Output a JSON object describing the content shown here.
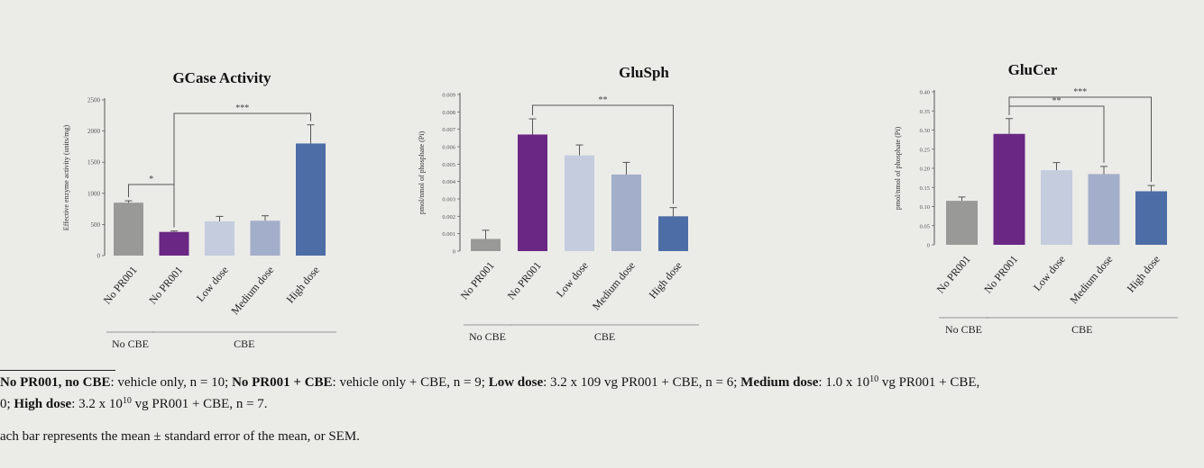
{
  "chart_data": [
    {
      "type": "bar",
      "title": "GCase Activity",
      "ylabel": "Effective enzyme activity (units/mg)",
      "ylim": [
        0,
        2500
      ],
      "yticks": [
        0,
        500,
        1000,
        1500,
        2000,
        2500
      ],
      "ytick_labels": [
        "0",
        "500",
        "1000",
        "1500",
        "2000",
        "2500"
      ],
      "categories": [
        "No PR001",
        "No PR001",
        "Low dose",
        "Medium dose",
        "High dose"
      ],
      "values": [
        850,
        380,
        550,
        560,
        1800
      ],
      "errors": [
        30,
        15,
        80,
        80,
        300
      ],
      "colors": [
        "#999a98",
        "#6a2783",
        "#c4ccde",
        "#a3aeca",
        "#4d6da6"
      ],
      "groups": [
        {
          "label": "No CBE",
          "from": 0,
          "to": 0
        },
        {
          "label": "CBE",
          "from": 1,
          "to": 4
        }
      ],
      "significance": [
        {
          "from": 0,
          "to": 1,
          "label": "*"
        },
        {
          "from": 1,
          "to": 4,
          "label": "***"
        }
      ]
    },
    {
      "type": "bar",
      "title": "GluSph",
      "ylabel": "pmol/nmol of phosphate (Pi)",
      "ylim": [
        0,
        0.009
      ],
      "yticks": [
        0,
        0.001,
        0.002,
        0.003,
        0.004,
        0.005,
        0.006,
        0.007,
        0.008,
        0.009
      ],
      "ytick_labels": [
        "0",
        "0.001",
        "0.002",
        "0.003",
        "0.004",
        "0.005",
        "0.006",
        "0.007",
        "0.008",
        "0.009"
      ],
      "categories": [
        "No PR001",
        "No PR001",
        "Low dose",
        "Medium dose",
        "High dose"
      ],
      "values": [
        0.0007,
        0.0067,
        0.0055,
        0.0044,
        0.002
      ],
      "errors": [
        0.0005,
        0.0009,
        0.0006,
        0.0007,
        0.0005
      ],
      "colors": [
        "#999a98",
        "#6a2783",
        "#c4ccde",
        "#a3aeca",
        "#4d6da6"
      ],
      "groups": [
        {
          "label": "No CBE",
          "from": 0,
          "to": 0
        },
        {
          "label": "CBE",
          "from": 1,
          "to": 4
        }
      ],
      "significance": [
        {
          "from": 1,
          "to": 4,
          "label": "**"
        }
      ]
    },
    {
      "type": "bar",
      "title": "GluCer",
      "ylabel": "pmol/nmol of phosphate (Pi)",
      "ylim": [
        0,
        0.4
      ],
      "yticks": [
        0,
        0.05,
        0.1,
        0.15,
        0.2,
        0.25,
        0.3,
        0.35,
        0.4
      ],
      "ytick_labels": [
        "0",
        "0.05",
        "0.10",
        "0.15",
        "0.20",
        "0.25",
        "0.30",
        "0.35",
        "0.40"
      ],
      "categories": [
        "No PR001",
        "No PR001",
        "Low dose",
        "Medium dose",
        "High dose"
      ],
      "values": [
        0.115,
        0.29,
        0.195,
        0.185,
        0.14
      ],
      "errors": [
        0.01,
        0.04,
        0.02,
        0.02,
        0.015
      ],
      "colors": [
        "#999a98",
        "#6a2783",
        "#c4ccde",
        "#a3aeca",
        "#4d6da6"
      ],
      "groups": [
        {
          "label": "No CBE",
          "from": 0,
          "to": 0
        },
        {
          "label": "CBE",
          "from": 1,
          "to": 4
        }
      ],
      "significance": [
        {
          "from": 1,
          "to": 3,
          "label": "**"
        },
        {
          "from": 1,
          "to": 4,
          "label": "***"
        }
      ]
    }
  ],
  "footnote": {
    "line1": {
      "nopr_nocbe_label": "No PR001, no CBE",
      "nopr_nocbe_text": ": vehicle only, n = 10; ",
      "nopr_cbe_label": "No PR001 + CBE",
      "nopr_cbe_text": ": vehicle only + CBE, n = 9; ",
      "low_label": "Low dose",
      "low_text": ": 3.2 x 109 vg PR001 + CBE, n = 6; ",
      "medium_label": "Medium dose",
      "medium_text_a": ": 1.0 x 10",
      "medium_exp": "10",
      "medium_text_b": " vg PR001 + CBE,"
    },
    "line2": {
      "start": "0; ",
      "high_label": "High dose",
      "high_text_a": ": 3.2 x 10",
      "high_exp": "10",
      "high_text_b": " vg PR001 + CBE, n = 7."
    },
    "line3": "ach bar represents the mean ± standard error of the mean, or SEM."
  }
}
